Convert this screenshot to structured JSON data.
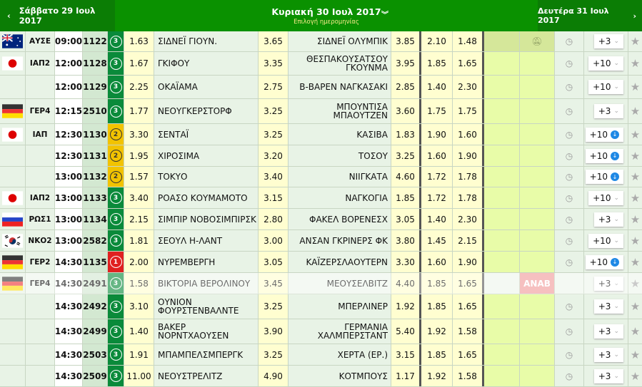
{
  "header": {
    "prev_day": "Σάββατο 29 Ιουλ 2017",
    "current_day": "Κυριακή 30 Ιουλ 2017",
    "date_select": "Επιλογή ημερομηνίας",
    "next_day": "Δευτέρα 31 Ιουλ 2017"
  },
  "colors": {
    "header_green": "#0a9100",
    "badge_green": "#0a8a3a",
    "badge_yellow": "#f2c300",
    "badge_red": "#e02020",
    "anab": "#f19b9b"
  },
  "rows": [
    {
      "flag": "australia",
      "league": "ΑΥΣΕ",
      "time": "09:00",
      "code": "1122",
      "badge": "3",
      "badge_color": "green",
      "odd1": "1.63",
      "home": "ΣΙΔΝΕΪ ΓΙΟΥΝ.",
      "oddx": "3.65",
      "away": "ΣΙΔΝΕΪ ΟΛΥΜΠΙΚ",
      "odd2": "3.85",
      "under": "2.10",
      "over": "1.48",
      "live": "muted-bell",
      "more": "+3",
      "more_icon": "chevron"
    },
    {
      "flag": "japan",
      "league": "ΙΑΠ2",
      "time": "12:00",
      "code": "1128",
      "badge": "3",
      "badge_color": "green",
      "odd1": "1.67",
      "home": "ΓΚΙΦΟΥ",
      "oddx": "3.35",
      "away": "ΘΕΣΠΑΚΟΥΣΑΤΣΟΥ ΓΚΟΥΝΜΑ",
      "odd2": "3.95",
      "under": "1.85",
      "over": "1.65",
      "more": "+10",
      "more_icon": "chevron"
    },
    {
      "flag": "",
      "league": "",
      "time": "12:00",
      "code": "1129",
      "badge": "3",
      "badge_color": "green",
      "odd1": "2.25",
      "home": "ΟΚΑΪΑΜΑ",
      "oddx": "2.75",
      "away": "Β-ΒΑΡΕΝ ΝΑΓΚΑΣΑΚΙ",
      "odd2": "2.85",
      "under": "1.40",
      "over": "2.30",
      "more": "+10",
      "more_icon": "chevron"
    },
    {
      "flag": "germany",
      "league": "ΓΕΡ4",
      "time": "12:15",
      "code": "2510",
      "badge": "3",
      "badge_color": "green",
      "odd1": "1.77",
      "home": "ΝΕΟΥΓΚΕΡΣΤΟΡΦ",
      "oddx": "3.25",
      "away": "ΜΠΟΥΝΤΙΣΑ ΜΠΑΟΥΤΖΕΝ",
      "odd2": "3.60",
      "under": "1.75",
      "over": "1.75",
      "more": "+3",
      "more_icon": "chevron"
    },
    {
      "flag": "japan",
      "league": "ΙΑΠ",
      "time": "12:30",
      "code": "1130",
      "badge": "2",
      "badge_color": "yellow",
      "odd1": "3.30",
      "home": "ΣΕΝΤΑΪ",
      "oddx": "3.25",
      "away": "ΚΑΣΙΒΑ",
      "odd2": "1.83",
      "under": "1.90",
      "over": "1.60",
      "more": "+10",
      "more_icon": "live"
    },
    {
      "flag": "",
      "league": "",
      "time": "12:30",
      "code": "1131",
      "badge": "2",
      "badge_color": "yellow",
      "odd1": "1.95",
      "home": "ΧΙΡΟΣΙΜΑ",
      "oddx": "3.20",
      "away": "ΤΟΣΟΥ",
      "odd2": "3.25",
      "under": "1.60",
      "over": "1.90",
      "more": "+10",
      "more_icon": "live"
    },
    {
      "flag": "",
      "league": "",
      "time": "13:00",
      "code": "1132",
      "badge": "2",
      "badge_color": "yellow",
      "odd1": "1.57",
      "home": "ΤΟΚΥΟ",
      "oddx": "3.40",
      "away": "ΝΙΙΓΚΑΤΑ",
      "odd2": "4.60",
      "under": "1.72",
      "over": "1.78",
      "more": "+10",
      "more_icon": "live"
    },
    {
      "flag": "japan",
      "league": "ΙΑΠ2",
      "time": "13:00",
      "code": "1133",
      "badge": "3",
      "badge_color": "green",
      "odd1": "3.40",
      "home": "ΡΟΑΣΟ ΚΟΥΜΑΜΟΤΟ",
      "oddx": "3.15",
      "away": "ΝΑΓΚΟΓΙΑ",
      "odd2": "1.85",
      "under": "1.72",
      "over": "1.78",
      "more": "+10",
      "more_icon": "chevron"
    },
    {
      "flag": "russia",
      "league": "ΡΩΣ1",
      "time": "13:00",
      "code": "1134",
      "badge": "3",
      "badge_color": "green",
      "odd1": "2.15",
      "home": "ΣΙΜΠΙΡ ΝΟΒΟΣΙΜΠΙΡΣΚ",
      "oddx": "2.80",
      "away": "ΦΑΚΕΛ ΒΟΡΕΝΕΣΧ",
      "odd2": "3.05",
      "under": "1.40",
      "over": "2.30",
      "more": "+3",
      "more_icon": "chevron"
    },
    {
      "flag": "korea",
      "league": "ΝΚΟ2",
      "time": "13:00",
      "code": "2582",
      "badge": "3",
      "badge_color": "green",
      "odd1": "1.81",
      "home": "ΣΕΟΥΛ Η-ΛΑΝΤ",
      "oddx": "3.00",
      "away": "ΑΝΣΑΝ ΓΚΡΙΝΕΡΣ ΦΚ",
      "odd2": "3.80",
      "under": "1.45",
      "over": "2.15",
      "more": "+10",
      "more_icon": "chevron"
    },
    {
      "flag": "germany",
      "league": "ΓΕΡ2",
      "time": "14:30",
      "code": "1135",
      "badge": "1",
      "badge_color": "red",
      "odd1": "2.00",
      "home": "ΝΥΡΕΜΒΕΡΓΗ",
      "oddx": "3.05",
      "away": "ΚΑΪΖΕΡΣΛΑΟΥΤΕΡΝ",
      "odd2": "3.30",
      "under": "1.60",
      "over": "1.90",
      "more": "+10",
      "more_icon": "live"
    },
    {
      "flag": "germany",
      "league": "ΓΕΡ4",
      "time": "14:30",
      "code": "2491",
      "badge": "3",
      "badge_color": "green",
      "odd1": "1.58",
      "home": "ΒΙΚΤΟΡΙΑ ΒΕΡΟΛΙΝΟΥ",
      "oddx": "3.45",
      "away": "ΜΕΟΥΣΕΛΒΙΤΖ",
      "odd2": "4.40",
      "under": "1.85",
      "over": "1.65",
      "status": "ANAB",
      "dim": true,
      "more": "+3",
      "more_icon": "chevron"
    },
    {
      "flag": "",
      "league": "",
      "time": "14:30",
      "code": "2492",
      "badge": "3",
      "badge_color": "green",
      "odd1": "3.10",
      "home": "ΟΥΝΙΟΝ ΦΟΥΡΣΤΕΝΒΑΛΝΤΕ",
      "oddx": "3.25",
      "away": "ΜΠΕΡΛΙΝΕΡ",
      "odd2": "1.92",
      "under": "1.85",
      "over": "1.65",
      "more": "+3",
      "more_icon": "chevron"
    },
    {
      "flag": "",
      "league": "",
      "time": "14:30",
      "code": "2499",
      "badge": "3",
      "badge_color": "green",
      "odd1": "1.40",
      "home": "ΒΑΚΕΡ ΝΟΡΝΤΧΑΟΥΣΕΝ",
      "oddx": "3.90",
      "away": "ΓΕΡΜΑΝΙΑ ΧΑΛΜΠΕΡΣΤΑΝΤ",
      "odd2": "5.40",
      "under": "1.92",
      "over": "1.58",
      "more": "+3",
      "more_icon": "chevron"
    },
    {
      "flag": "",
      "league": "",
      "time": "14:30",
      "code": "2503",
      "badge": "3",
      "badge_color": "green",
      "odd1": "1.91",
      "home": "ΜΠΑΜΠΕΛΣΜΠΕΡΓΚ",
      "oddx": "3.25",
      "away": "ΧΕΡΤΑ (ΕΡ.)",
      "odd2": "3.15",
      "under": "1.85",
      "over": "1.65",
      "more": "+3",
      "more_icon": "chevron"
    },
    {
      "flag": "",
      "league": "",
      "time": "14:30",
      "code": "2509",
      "badge": "3",
      "badge_color": "green",
      "odd1": "11.00",
      "home": "ΝΕΟΥΣΤΡΕΛΙΤΖ",
      "oddx": "4.90",
      "away": "ΚΟΤΜΠΟΥΣ",
      "odd2": "1.17",
      "under": "1.92",
      "over": "1.58",
      "more": "+3",
      "more_icon": "chevron"
    }
  ]
}
